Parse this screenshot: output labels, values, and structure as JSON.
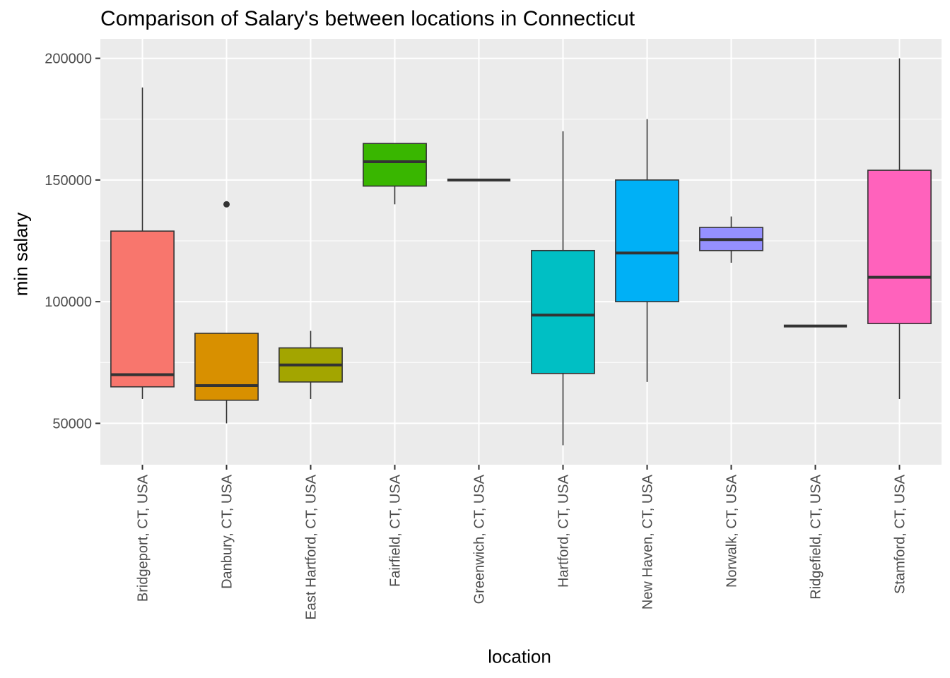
{
  "chart_data": {
    "type": "box",
    "title": "Comparison of Salary's between locations in Connecticut",
    "xlabel": "location",
    "ylabel": "min salary",
    "ylim": [
      33000,
      208000
    ],
    "yticks": [
      50000,
      100000,
      150000,
      200000
    ],
    "ytick_labels": [
      "50000",
      "100000",
      "150000",
      "200000"
    ],
    "grid": true,
    "legend": "none",
    "categories": [
      "Bridgeport, CT, USA",
      "Danbury, CT, USA",
      "East Hartford, CT, USA",
      "Fairfield, CT, USA",
      "Greenwich, CT, USA",
      "Hartford, CT, USA",
      "New Haven, CT, USA",
      "Norwalk, CT, USA",
      "Ridgefield, CT, USA",
      "Stamford, CT, USA"
    ],
    "boxes": [
      {
        "min": 60000,
        "q1": 65000,
        "median": 70000,
        "q3": 129000,
        "max": 188000,
        "outliers": [],
        "color": "#F8766D"
      },
      {
        "min": 50000,
        "q1": 59500,
        "median": 65500,
        "q3": 87000,
        "max": 87000,
        "outliers": [
          140000
        ],
        "color": "#D89000"
      },
      {
        "min": 60000,
        "q1": 67000,
        "median": 74000,
        "q3": 81000,
        "max": 88000,
        "outliers": [],
        "color": "#A3A500"
      },
      {
        "min": 140000,
        "q1": 147500,
        "median": 157500,
        "q3": 165000,
        "max": 165000,
        "outliers": [],
        "color": "#39B600"
      },
      {
        "min": 150000,
        "q1": 150000,
        "median": 150000,
        "q3": 150000,
        "max": 150000,
        "outliers": [],
        "color": "#00BF7D"
      },
      {
        "min": 41000,
        "q1": 70500,
        "median": 94500,
        "q3": 121000,
        "max": 170000,
        "outliers": [],
        "color": "#00BFC4"
      },
      {
        "min": 67000,
        "q1": 100000,
        "median": 120000,
        "q3": 150000,
        "max": 175000,
        "outliers": [],
        "color": "#00B0F6"
      },
      {
        "min": 116000,
        "q1": 121000,
        "median": 125500,
        "q3": 130500,
        "max": 135000,
        "outliers": [],
        "color": "#9590FF"
      },
      {
        "min": 90000,
        "q1": 90000,
        "median": 90000,
        "q3": 90000,
        "max": 90000,
        "outliers": [],
        "color": "#E76BF3"
      },
      {
        "min": 60000,
        "q1": 91000,
        "median": 110000,
        "q3": 154000,
        "max": 200000,
        "outliers": [],
        "color": "#FF62BC"
      }
    ]
  }
}
